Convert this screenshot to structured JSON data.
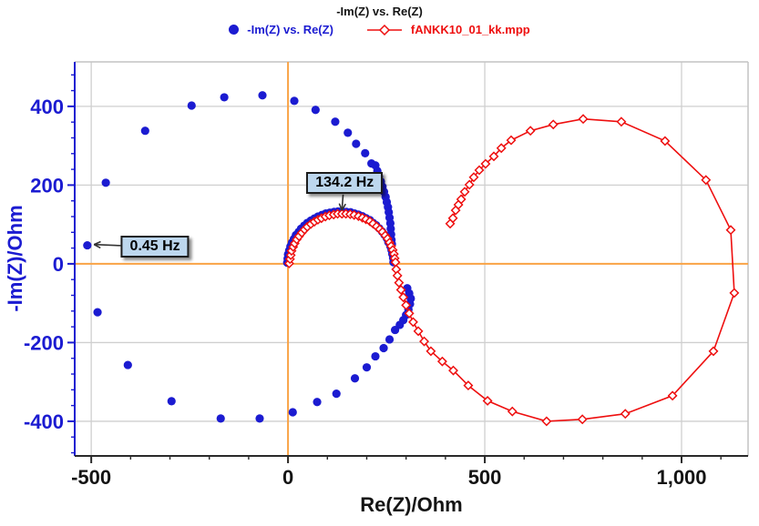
{
  "colors": {
    "blue": "#1b1bd1",
    "red": "#ee0f0f",
    "orange": "#f9a345",
    "grid": "#cfcfcf",
    "frame": "#c4c4c4",
    "axis_dark": "#2a2a2a",
    "annotation_bg": "#bdd7ee",
    "arrow": "#333333"
  },
  "chart_data": {
    "type": "scatter",
    "title": "-Im(Z) vs. Re(Z)",
    "legend_position": "top-center",
    "grid": true,
    "axes": {
      "x": {
        "label": "Re(Z)/Ohm",
        "lim": [
          -542,
          1169
        ],
        "major_ticks": [
          -500,
          0,
          500,
          1000
        ],
        "tick_labels": [
          "-500",
          "0",
          "500",
          "1,000"
        ],
        "minor_step": 100,
        "color": "#141414"
      },
      "y": {
        "label": "-Im(Z)/Ohm",
        "lim": [
          -488,
          513
        ],
        "major_ticks": [
          -400,
          -200,
          0,
          200,
          400
        ],
        "tick_labels": [
          "-400",
          "-200",
          "0",
          "200",
          "400"
        ],
        "minor_step": 40,
        "color": "#1b1bd1"
      }
    },
    "series": [
      {
        "name": "-Im(Z) vs. Re(Z)",
        "marker": "filled-circle",
        "color": "#1b1bd1",
        "line": false,
        "points": [
          [
            -2,
            3
          ],
          [
            -1,
            13
          ],
          [
            0,
            24
          ],
          [
            3,
            34
          ],
          [
            6,
            44
          ],
          [
            10,
            54
          ],
          [
            15,
            63
          ],
          [
            20,
            73
          ],
          [
            27,
            81
          ],
          [
            33,
            89
          ],
          [
            41,
            97
          ],
          [
            49,
            104
          ],
          [
            58,
            110
          ],
          [
            67,
            115
          ],
          [
            76,
            120
          ],
          [
            86,
            124
          ],
          [
            96,
            128
          ],
          [
            106,
            130
          ],
          [
            117,
            132
          ],
          [
            127,
            133
          ],
          [
            138,
            133
          ],
          [
            148,
            132
          ],
          [
            159,
            131
          ],
          [
            169,
            128
          ],
          [
            179,
            125
          ],
          [
            189,
            121
          ],
          [
            198,
            116
          ],
          [
            208,
            111
          ],
          [
            216,
            104
          ],
          [
            224,
            98
          ],
          [
            232,
            90
          ],
          [
            239,
            82
          ],
          [
            245,
            74
          ],
          [
            251,
            65
          ],
          [
            255,
            55
          ],
          [
            260,
            45
          ],
          [
            263,
            35
          ],
          [
            265,
            25
          ],
          [
            267,
            15
          ],
          [
            268,
            4
          ],
          [
            222,
            250
          ],
          [
            227,
            236
          ],
          [
            231,
            222
          ],
          [
            236,
            209
          ],
          [
            240,
            196
          ],
          [
            244,
            183
          ],
          [
            248,
            170
          ],
          [
            251,
            157
          ],
          [
            254,
            144
          ],
          [
            256,
            131
          ],
          [
            258,
            117
          ],
          [
            260,
            103
          ],
          [
            261,
            89
          ],
          [
            262,
            75
          ],
          [
            263,
            61
          ],
          [
            264,
            50
          ],
          [
            303,
            -62
          ],
          [
            308,
            -75
          ],
          [
            312,
            -88
          ],
          [
            310,
            -102
          ],
          [
            306,
            -116
          ],
          [
            300,
            -130
          ],
          [
            293,
            -143
          ],
          [
            284,
            -155
          ],
          [
            -510,
            47
          ],
          [
            -484,
            -123
          ],
          [
            -463,
            206
          ],
          [
            -407,
            -257
          ],
          [
            -363,
            338
          ],
          [
            -296,
            -349
          ],
          [
            -245,
            402
          ],
          [
            -171,
            -393
          ],
          [
            -162,
            423
          ],
          [
            -72,
            -393
          ],
          [
            -65,
            428
          ],
          [
            12,
            -377
          ],
          [
            16,
            414
          ],
          [
            70,
            391
          ],
          [
            74,
            -351
          ],
          [
            120,
            361
          ],
          [
            123,
            -330
          ],
          [
            152,
            333
          ],
          [
            170,
            -291
          ],
          [
            173,
            305
          ],
          [
            196,
            281
          ],
          [
            200,
            -263
          ],
          [
            212,
            255
          ],
          [
            222,
            -235
          ],
          [
            243,
            -214
          ],
          [
            258,
            -192
          ],
          [
            272,
            -168
          ]
        ]
      },
      {
        "name": "fANKK10_01_kk.mpp",
        "marker": "open-diamond",
        "color": "#ee0f0f",
        "line": true,
        "points": [
          [
            3,
            1
          ],
          [
            5,
            12
          ],
          [
            7,
            22
          ],
          [
            9,
            33
          ],
          [
            13,
            43
          ],
          [
            17,
            52
          ],
          [
            22,
            62
          ],
          [
            28,
            70
          ],
          [
            35,
            79
          ],
          [
            42,
            87
          ],
          [
            49,
            94
          ],
          [
            58,
            101
          ],
          [
            67,
            107
          ],
          [
            76,
            112
          ],
          [
            85,
            116
          ],
          [
            95,
            120
          ],
          [
            105,
            123
          ],
          [
            116,
            125
          ],
          [
            126,
            127
          ],
          [
            137,
            127
          ],
          [
            147,
            127
          ],
          [
            158,
            126
          ],
          [
            168,
            124
          ],
          [
            179,
            121
          ],
          [
            189,
            117
          ],
          [
            198,
            113
          ],
          [
            208,
            108
          ],
          [
            216,
            102
          ],
          [
            225,
            95
          ],
          [
            233,
            88
          ],
          [
            240,
            81
          ],
          [
            247,
            72
          ],
          [
            253,
            64
          ],
          [
            258,
            54
          ],
          [
            262,
            45
          ],
          [
            266,
            35
          ],
          [
            269,
            25
          ],
          [
            271,
            14
          ],
          [
            273,
            4
          ],
          [
            275,
            -14
          ],
          [
            278,
            -30
          ],
          [
            282,
            -48
          ],
          [
            287,
            -66
          ],
          [
            293,
            -85
          ],
          [
            300,
            -105
          ],
          [
            308,
            -126
          ],
          [
            318,
            -148
          ],
          [
            331,
            -171
          ],
          [
            346,
            -197
          ],
          [
            363,
            -222
          ],
          [
            392,
            -248
          ],
          [
            420,
            -271
          ],
          [
            458,
            -309
          ],
          [
            507,
            -348
          ],
          [
            570,
            -375
          ],
          [
            657,
            -400
          ],
          [
            748,
            -395
          ],
          [
            857,
            -381
          ],
          [
            977,
            -335
          ],
          [
            1081,
            -222
          ],
          [
            1134,
            -74
          ],
          [
            1125,
            86
          ],
          [
            1062,
            213
          ],
          [
            958,
            312
          ],
          [
            847,
            361
          ],
          [
            750,
            368
          ],
          [
            674,
            354
          ],
          [
            616,
            338
          ],
          [
            567,
            314
          ],
          [
            542,
            294
          ],
          [
            523,
            273
          ],
          [
            502,
            254
          ],
          [
            486,
            238
          ],
          [
            472,
            220
          ],
          [
            461,
            201
          ],
          [
            449,
            183
          ],
          [
            440,
            164
          ],
          [
            433,
            150
          ],
          [
            426,
            136
          ],
          [
            419,
            116
          ],
          [
            412,
            102
          ]
        ]
      }
    ],
    "annotations": [
      {
        "text": "134.2 Hz",
        "box_center": [
          144,
          206
        ],
        "arrow_from": [
          140,
          176
        ],
        "arrow_to": [
          137,
          136
        ]
      },
      {
        "text": "0.45 Hz",
        "box_center": [
          -338,
          44
        ],
        "arrow_from": [
          -417,
          46
        ],
        "arrow_to": [
          -493,
          49
        ]
      }
    ]
  }
}
